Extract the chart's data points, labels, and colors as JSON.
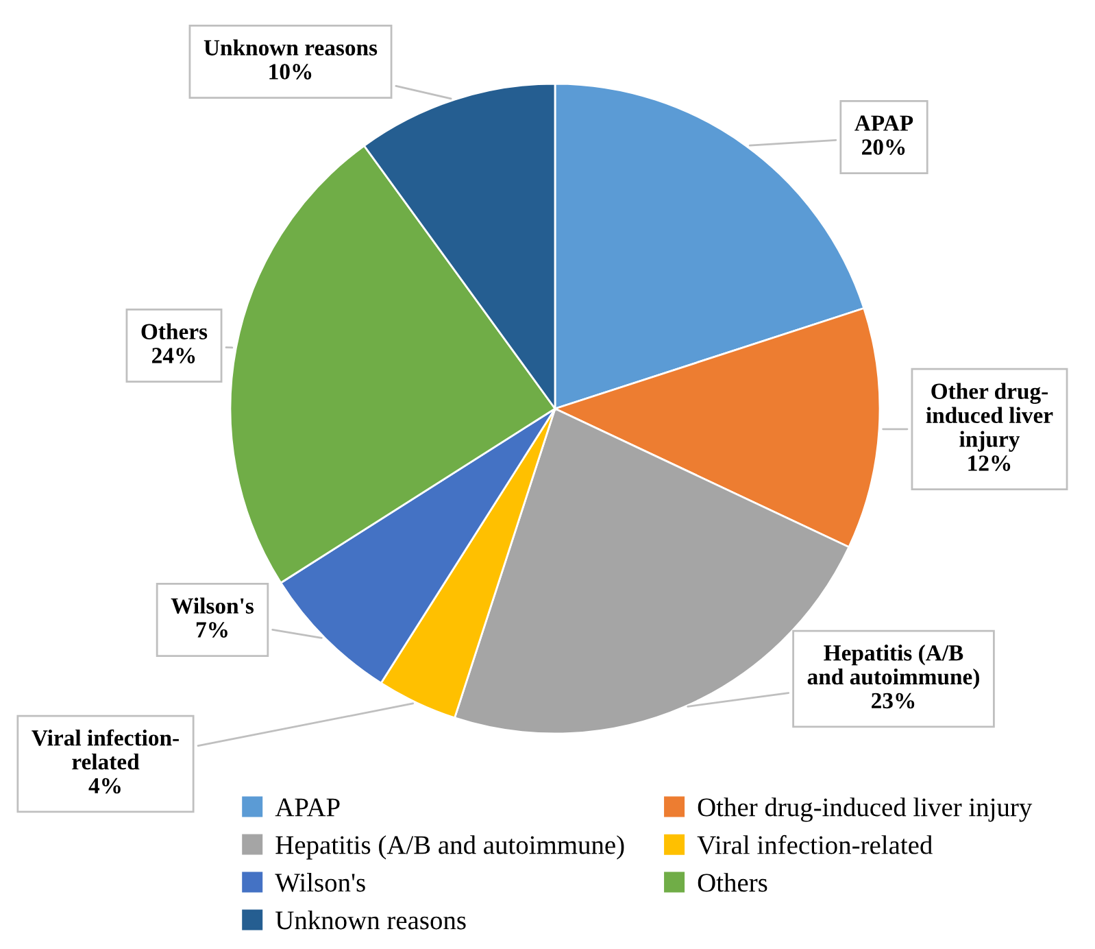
{
  "chart_data": {
    "type": "pie",
    "categories": [
      "APAP",
      "Other drug-induced liver injury",
      "Hepatitis (A/B and autoimmune)",
      "Viral infection-related",
      "Wilson's",
      "Others",
      "Unknown reasons"
    ],
    "values": [
      20,
      12,
      23,
      4,
      7,
      24,
      10
    ],
    "colors": [
      "#5b9bd5",
      "#ed7d31",
      "#a5a5a5",
      "#ffc000",
      "#4472c4",
      "#70ad47",
      "#255e91"
    ],
    "value_labels": [
      "20%",
      "12%",
      "23%",
      "4%",
      "7%",
      "24%",
      "10%"
    ],
    "legend": "bottom"
  }
}
